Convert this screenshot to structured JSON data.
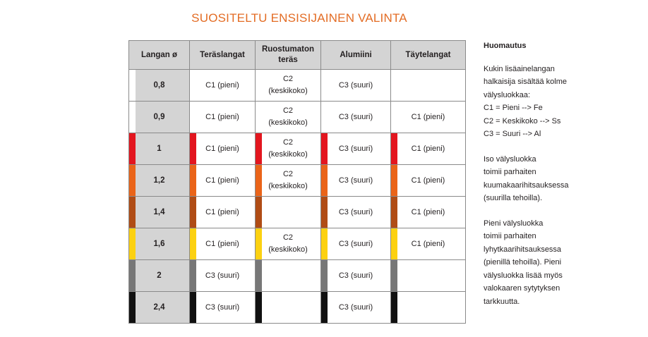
{
  "title": "SUOSITELTU ENSISIJAINEN VALINTA",
  "table": {
    "headers": [
      "Langan ø",
      "Teräslangat",
      "Ruostumaton\nteräs",
      "Alumiini",
      "Täytelangat"
    ],
    "rows": [
      {
        "size": "0,8",
        "color": "#ffffff",
        "cells": [
          "C1 (pieni)",
          "C2\n(keskikoko)",
          "C3 (suuri)",
          ""
        ]
      },
      {
        "size": "0,9",
        "color": "#ffffff",
        "cells": [
          "C1 (pieni)",
          "C2\n(keskikoko)",
          "C3 (suuri)",
          "C1 (pieni)"
        ]
      },
      {
        "size": "1",
        "color": "#e3161f",
        "cells": [
          "C1 (pieni)",
          "C2\n(keskikoko)",
          "C3 (suuri)",
          "C1 (pieni)"
        ]
      },
      {
        "size": "1,2",
        "color": "#ea6419",
        "cells": [
          "C1 (pieni)",
          "C2\n(keskikoko)",
          "C3 (suuri)",
          "C1 (pieni)"
        ]
      },
      {
        "size": "1,4",
        "color": "#b04c15",
        "cells": [
          "C1 (pieni)",
          "",
          "C3 (suuri)",
          "C1 (pieni)"
        ]
      },
      {
        "size": "1,6",
        "color": "#fcd111",
        "cells": [
          "C1 (pieni)",
          "C2\n(keskikoko)",
          "C3 (suuri)",
          "C1 (pieni)"
        ]
      },
      {
        "size": "2",
        "color": "#777777",
        "cells": [
          "C3 (suuri)",
          "",
          "C3 (suuri)",
          ""
        ]
      },
      {
        "size": "2,4",
        "color": "#111111",
        "cells": [
          "C3 (suuri)",
          "",
          "C3 (suuri)",
          ""
        ]
      }
    ]
  },
  "note": {
    "heading": "Huomautus",
    "paragraphs": [
      [
        "Kukin lisäainelangan",
        "halkaisija sisältää kolme",
        "välysluokkaa:",
        "C1 = Pieni --> Fe",
        "C2 = Keskikoko --> Ss",
        "C3 = Suuri --> Al"
      ],
      [
        "Iso välysluokka",
        "toimii parhaiten",
        "kuumakaarihitsauksessa",
        "(suurilla tehoilla)."
      ],
      [
        "Pieni välysluokka",
        "toimii parhaiten",
        "lyhytkaarihitsauksessa",
        "(pienillä tehoilla). Pieni",
        "välysluokka lisää myös",
        "valokaaren sytytyksen",
        "tarkkuutta."
      ]
    ]
  }
}
